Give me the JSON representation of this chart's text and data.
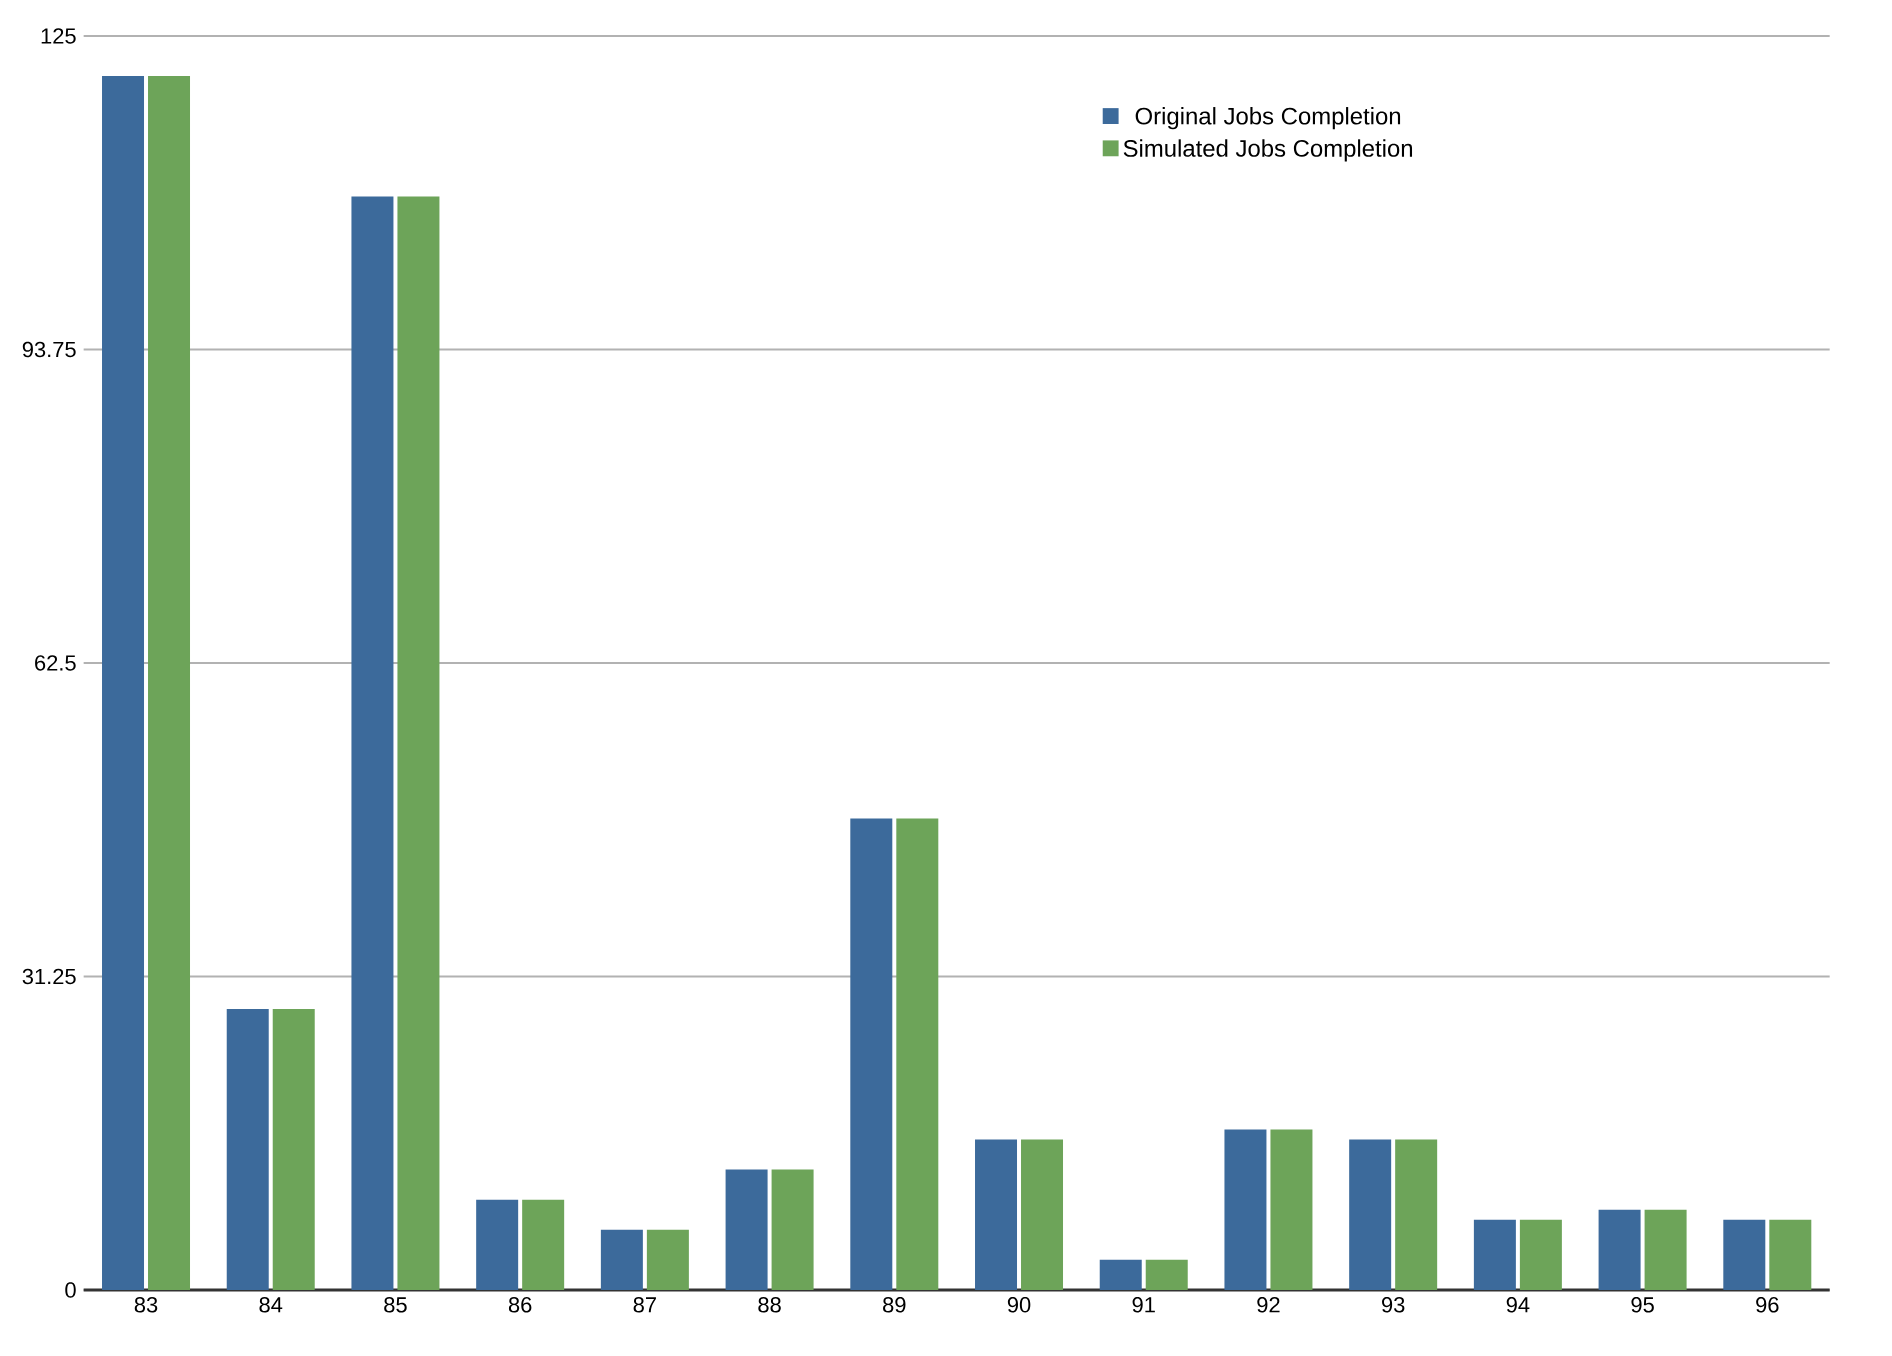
{
  "chart_data": {
    "type": "bar",
    "categories": [
      "83",
      "84",
      "85",
      "86",
      "87",
      "88",
      "89",
      "90",
      "91",
      "92",
      "93",
      "94",
      "95",
      "96"
    ],
    "series": [
      {
        "name": "Original Jobs Completion",
        "color": "#3c6a9b",
        "values": [
          121,
          28,
          109,
          9,
          6,
          12,
          47,
          15,
          3,
          16,
          15,
          7,
          8,
          7
        ]
      },
      {
        "name": "Simulated Jobs Completion",
        "color": "#6da459",
        "values": [
          121,
          28,
          109,
          9,
          6,
          12,
          47,
          15,
          3,
          16,
          15,
          7,
          8,
          7
        ]
      }
    ],
    "ylim": [
      0,
      125
    ],
    "yticks": [
      0,
      31.25,
      62.5,
      93.75,
      125
    ],
    "grid": "y",
    "legend": "top right"
  }
}
